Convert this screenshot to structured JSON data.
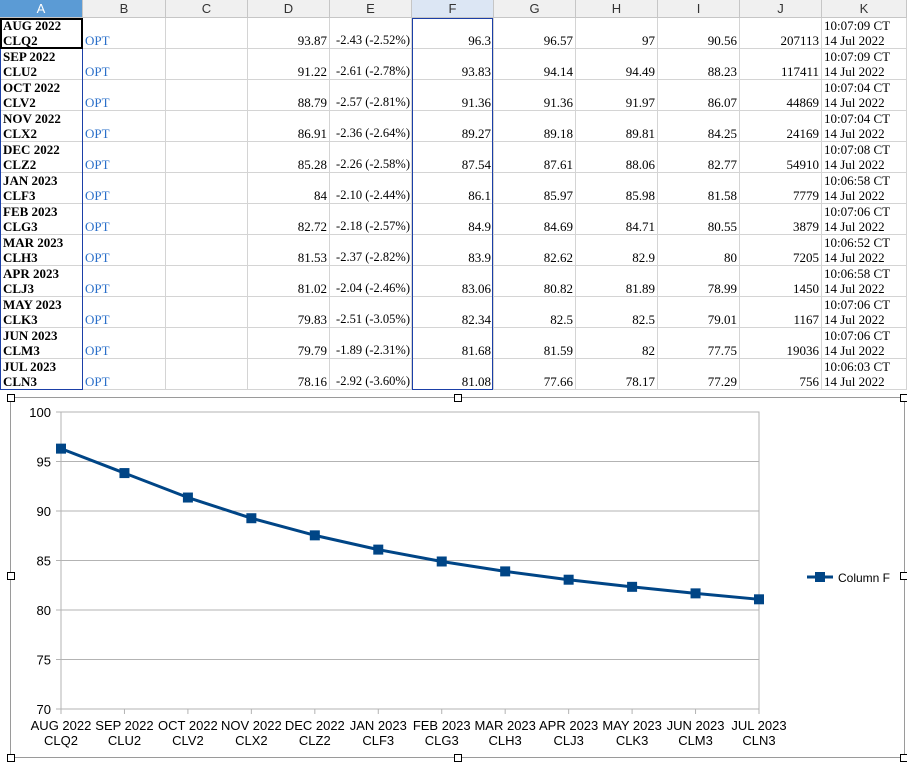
{
  "columns": [
    "A",
    "B",
    "C",
    "D",
    "E",
    "F",
    "G",
    "H",
    "I",
    "J",
    "K"
  ],
  "rows": [
    {
      "a1": "AUG 2022",
      "a2": "CLQ2",
      "b": "OPT",
      "d": "93.87",
      "e": "-2.43 (-2.52%)",
      "f": "96.3",
      "g": "96.57",
      "h": "97",
      "i": "90.56",
      "j": "207113",
      "k1": "10:07:09 CT",
      "k2": "14 Jul 2022"
    },
    {
      "a1": "SEP 2022",
      "a2": "CLU2",
      "b": "OPT",
      "d": "91.22",
      "e": "-2.61 (-2.78%)",
      "f": "93.83",
      "g": "94.14",
      "h": "94.49",
      "i": "88.23",
      "j": "117411",
      "k1": "10:07:09 CT",
      "k2": "14 Jul 2022"
    },
    {
      "a1": "OCT 2022",
      "a2": "CLV2",
      "b": "OPT",
      "d": "88.79",
      "e": "-2.57 (-2.81%)",
      "f": "91.36",
      "g": "91.36",
      "h": "91.97",
      "i": "86.07",
      "j": "44869",
      "k1": "10:07:04 CT",
      "k2": "14 Jul 2022"
    },
    {
      "a1": "NOV 2022",
      "a2": "CLX2",
      "b": "OPT",
      "d": "86.91",
      "e": "-2.36 (-2.64%)",
      "f": "89.27",
      "g": "89.18",
      "h": "89.81",
      "i": "84.25",
      "j": "24169",
      "k1": "10:07:04 CT",
      "k2": "14 Jul 2022"
    },
    {
      "a1": "DEC 2022",
      "a2": "CLZ2",
      "b": "OPT",
      "d": "85.28",
      "e": "-2.26 (-2.58%)",
      "f": "87.54",
      "g": "87.61",
      "h": "88.06",
      "i": "82.77",
      "j": "54910",
      "k1": "10:07:08 CT",
      "k2": "14 Jul 2022"
    },
    {
      "a1": "JAN 2023",
      "a2": "CLF3",
      "b": "OPT",
      "d": "84",
      "e": "-2.10 (-2.44%)",
      "f": "86.1",
      "g": "85.97",
      "h": "85.98",
      "i": "81.58",
      "j": "7779",
      "k1": "10:06:58 CT",
      "k2": "14 Jul 2022"
    },
    {
      "a1": "FEB 2023",
      "a2": "CLG3",
      "b": "OPT",
      "d": "82.72",
      "e": "-2.18 (-2.57%)",
      "f": "84.9",
      "g": "84.69",
      "h": "84.71",
      "i": "80.55",
      "j": "3879",
      "k1": "10:07:06 CT",
      "k2": "14 Jul 2022"
    },
    {
      "a1": "MAR 2023",
      "a2": "CLH3",
      "b": "OPT",
      "d": "81.53",
      "e": "-2.37 (-2.82%)",
      "f": "83.9",
      "g": "82.62",
      "h": "82.9",
      "i": "80",
      "j": "7205",
      "k1": "10:06:52 CT",
      "k2": "14 Jul 2022"
    },
    {
      "a1": "APR 2023",
      "a2": "CLJ3",
      "b": "OPT",
      "d": "81.02",
      "e": "-2.04 (-2.46%)",
      "f": "83.06",
      "g": "80.82",
      "h": "81.89",
      "i": "78.99",
      "j": "1450",
      "k1": "10:06:58 CT",
      "k2": "14 Jul 2022"
    },
    {
      "a1": "MAY 2023",
      "a2": "CLK3",
      "b": "OPT",
      "d": "79.83",
      "e": "-2.51 (-3.05%)",
      "f": "82.34",
      "g": "82.5",
      "h": "82.5",
      "i": "79.01",
      "j": "1167",
      "k1": "10:07:06 CT",
      "k2": "14 Jul 2022"
    },
    {
      "a1": "JUN 2023",
      "a2": "CLM3",
      "b": "OPT",
      "d": "79.79",
      "e": "-1.89 (-2.31%)",
      "f": "81.68",
      "g": "81.59",
      "h": "82",
      "i": "77.75",
      "j": "19036",
      "k1": "10:07:06 CT",
      "k2": "14 Jul 2022"
    },
    {
      "a1": "JUL 2023",
      "a2": "CLN3",
      "b": "OPT",
      "d": "78.16",
      "e": "-2.92 (-3.60%)",
      "f": "81.08",
      "g": "77.66",
      "h": "78.17",
      "i": "77.29",
      "j": "756",
      "k1": "10:06:03 CT",
      "k2": "14 Jul 2022"
    }
  ],
  "colors": {
    "series": "#004586",
    "link": "#2a6fc9",
    "header_selected": "#5b9bd5",
    "selection_border": "#1b3fa7"
  },
  "chart_data": {
    "type": "line",
    "categories": [
      [
        "AUG 2022",
        "CLQ2"
      ],
      [
        "SEP 2022",
        "CLU2"
      ],
      [
        "OCT 2022",
        "CLV2"
      ],
      [
        "NOV 2022",
        "CLX2"
      ],
      [
        "DEC 2022",
        "CLZ2"
      ],
      [
        "JAN 2023",
        "CLF3"
      ],
      [
        "FEB 2023",
        "CLG3"
      ],
      [
        "MAR 2023",
        "CLH3"
      ],
      [
        "APR 2023",
        "CLJ3"
      ],
      [
        "MAY 2023",
        "CLK3"
      ],
      [
        "JUN 2023",
        "CLM3"
      ],
      [
        "JUL 2023",
        "CLN3"
      ]
    ],
    "series": [
      {
        "name": "Column F",
        "values": [
          96.3,
          93.83,
          91.36,
          89.27,
          87.54,
          86.1,
          84.9,
          83.9,
          83.06,
          82.34,
          81.68,
          81.08
        ]
      }
    ],
    "yticks": [
      "70",
      "75",
      "80",
      "85",
      "90",
      "95",
      "100"
    ],
    "ylim": [
      70,
      100
    ],
    "grid": true,
    "legend": "right",
    "marker": "square"
  }
}
